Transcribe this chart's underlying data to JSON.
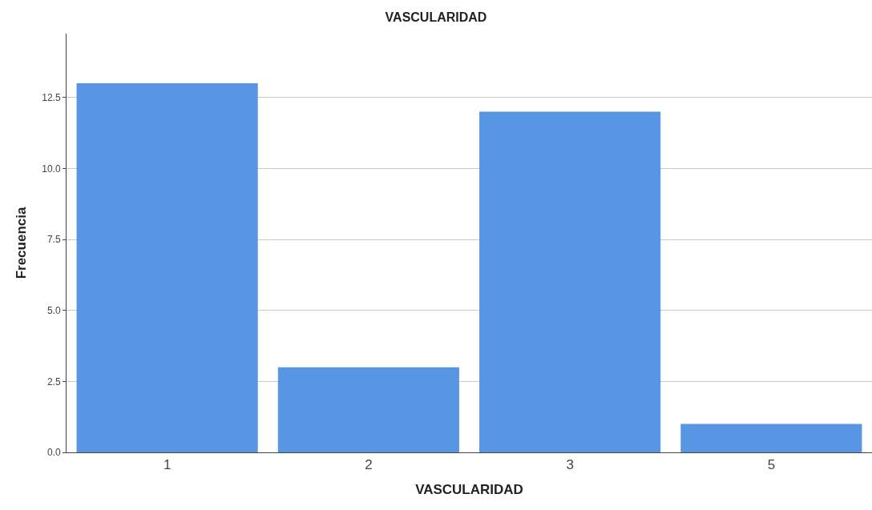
{
  "chart_data": {
    "type": "bar",
    "title": "VASCULARIDAD",
    "xlabel": "VASCULARIDAD",
    "ylabel": "Frecuencia",
    "categories": [
      "1",
      "2",
      "3",
      "5"
    ],
    "values": [
      13,
      3,
      12,
      1
    ],
    "color": "#5896e3",
    "ylim": [
      0,
      14.75
    ],
    "yticks": [
      {
        "value": 0,
        "label": "0.0"
      },
      {
        "value": 2.5,
        "label": "2.5"
      },
      {
        "value": 5,
        "label": "5.0"
      },
      {
        "value": 7.5,
        "label": "7.5"
      },
      {
        "value": 10,
        "label": "10.0"
      },
      {
        "value": 12.5,
        "label": "12.5"
      }
    ],
    "grid": "y"
  }
}
